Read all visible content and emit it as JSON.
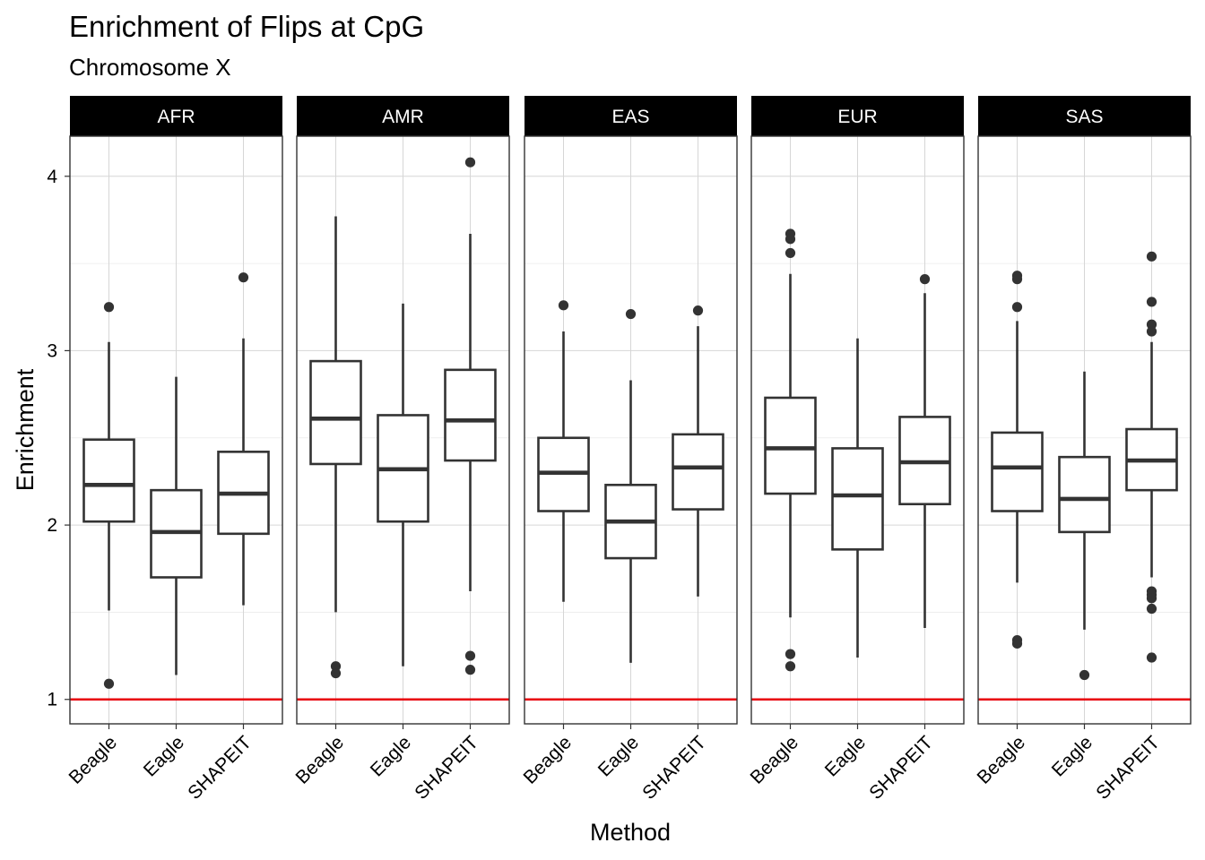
{
  "chart_data": {
    "type": "boxplot",
    "title": "Enrichment of Flips at CpG",
    "subtitle": "Chromosome X",
    "xlabel": "Method",
    "ylabel": "Enrichment",
    "ylim": [
      0.86,
      4.23
    ],
    "yticks": [
      "1",
      "2",
      "3",
      "4"
    ],
    "ytick_values": [
      1,
      2,
      3,
      4
    ],
    "categories": [
      "Beagle",
      "Eagle",
      "SHAPEIT"
    ],
    "reference_line": {
      "y": 1,
      "color": "#e8000b"
    },
    "colors": {
      "box": "#333333",
      "reference": "#e8000b",
      "strip_bg": "#000000",
      "strip_text": "#ffffff",
      "grid": "#d6d6d6",
      "panel_border": "#333333"
    },
    "grid": true,
    "panels": [
      {
        "label": "AFR",
        "boxes": [
          {
            "method": "Beagle",
            "whisker_low": 1.51,
            "q1": 2.02,
            "median": 2.23,
            "q3": 2.49,
            "whisker_high": 3.05,
            "outliers": [
              3.25,
              1.09
            ]
          },
          {
            "method": "Eagle",
            "whisker_low": 1.14,
            "q1": 1.7,
            "median": 1.96,
            "q3": 2.2,
            "whisker_high": 2.85,
            "outliers": []
          },
          {
            "method": "SHAPEIT",
            "whisker_low": 1.54,
            "q1": 1.95,
            "median": 2.18,
            "q3": 2.42,
            "whisker_high": 3.07,
            "outliers": [
              3.42
            ]
          }
        ]
      },
      {
        "label": "AMR",
        "boxes": [
          {
            "method": "Beagle",
            "whisker_low": 1.5,
            "q1": 2.35,
            "median": 2.61,
            "q3": 2.94,
            "whisker_high": 3.77,
            "outliers": [
              1.19,
              1.15
            ]
          },
          {
            "method": "Eagle",
            "whisker_low": 1.19,
            "q1": 2.02,
            "median": 2.32,
            "q3": 2.63,
            "whisker_high": 3.27,
            "outliers": []
          },
          {
            "method": "SHAPEIT",
            "whisker_low": 1.62,
            "q1": 2.37,
            "median": 2.6,
            "q3": 2.89,
            "whisker_high": 3.67,
            "outliers": [
              4.08,
              1.25,
              1.17
            ]
          }
        ]
      },
      {
        "label": "EAS",
        "boxes": [
          {
            "method": "Beagle",
            "whisker_low": 1.56,
            "q1": 2.08,
            "median": 2.3,
            "q3": 2.5,
            "whisker_high": 3.11,
            "outliers": [
              3.26
            ]
          },
          {
            "method": "Eagle",
            "whisker_low": 1.21,
            "q1": 1.81,
            "median": 2.02,
            "q3": 2.23,
            "whisker_high": 2.83,
            "outliers": [
              3.21
            ]
          },
          {
            "method": "SHAPEIT",
            "whisker_low": 1.59,
            "q1": 2.09,
            "median": 2.33,
            "q3": 2.52,
            "whisker_high": 3.14,
            "outliers": [
              3.23
            ]
          }
        ]
      },
      {
        "label": "EUR",
        "boxes": [
          {
            "method": "Beagle",
            "whisker_low": 1.47,
            "q1": 2.18,
            "median": 2.44,
            "q3": 2.73,
            "whisker_high": 3.44,
            "outliers": [
              3.67,
              3.64,
              3.56,
              1.26,
              1.19
            ]
          },
          {
            "method": "Eagle",
            "whisker_low": 1.24,
            "q1": 1.86,
            "median": 2.17,
            "q3": 2.44,
            "whisker_high": 3.07,
            "outliers": []
          },
          {
            "method": "SHAPEIT",
            "whisker_low": 1.41,
            "q1": 2.12,
            "median": 2.36,
            "q3": 2.62,
            "whisker_high": 3.33,
            "outliers": [
              3.41
            ]
          }
        ]
      },
      {
        "label": "SAS",
        "boxes": [
          {
            "method": "Beagle",
            "whisker_low": 1.67,
            "q1": 2.08,
            "median": 2.33,
            "q3": 2.53,
            "whisker_high": 3.17,
            "outliers": [
              3.43,
              3.41,
              3.25,
              1.34,
              1.32
            ]
          },
          {
            "method": "Eagle",
            "whisker_low": 1.4,
            "q1": 1.96,
            "median": 2.15,
            "q3": 2.39,
            "whisker_high": 2.88,
            "outliers": [
              1.14
            ]
          },
          {
            "method": "SHAPEIT",
            "whisker_low": 1.7,
            "q1": 2.2,
            "median": 2.37,
            "q3": 2.55,
            "whisker_high": 3.05,
            "outliers": [
              3.54,
              3.28,
              3.15,
              3.11,
              1.62,
              1.6,
              1.58,
              1.52,
              1.24
            ]
          }
        ]
      }
    ]
  }
}
